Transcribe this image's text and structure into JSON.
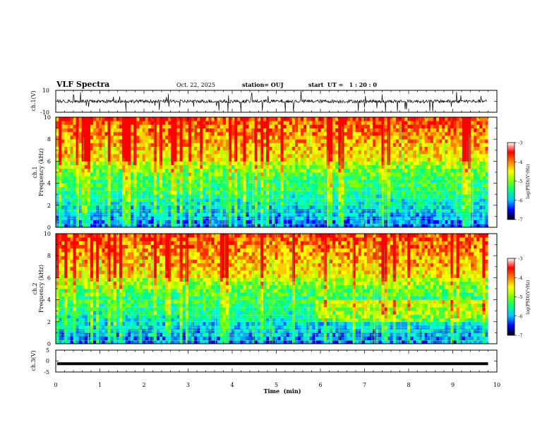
{
  "header": {
    "title": "VLF Spectra",
    "date": "Oct. 22, 2025",
    "station": "station= OUJ",
    "start": "start  UT =   1 : 20 : 0"
  },
  "chart_data": [
    {
      "type": "line",
      "id": "ch1-waveform",
      "ylabel": "ch.1(V)",
      "ylim": [
        -10,
        10
      ],
      "ytick_labels": [
        "10",
        "-10"
      ],
      "baseline": 0,
      "noise_amplitude": 1.5
    },
    {
      "type": "heatmap",
      "id": "ch1-spectrogram",
      "ylabel": [
        "ch.1",
        "Frequency  (kHz)"
      ],
      "ylim": [
        0,
        10
      ],
      "yticks": [
        "0",
        "2",
        "4",
        "6",
        "8",
        "10"
      ],
      "xlim": [
        0,
        10
      ],
      "data_end_min": 9.8,
      "colorbar": {
        "label": "log(PSD)(V²/Hz)",
        "range": [
          -7,
          -3
        ],
        "ticks": [
          "-3",
          "-4",
          "-5",
          "-6",
          "-7"
        ],
        "colors": [
          "#000000",
          "#0000ff",
          "#00bfff",
          "#00ff80",
          "#80ff00",
          "#ffff00",
          "#ff8000",
          "#ff0000",
          "#ffffff"
        ]
      }
    },
    {
      "type": "heatmap",
      "id": "ch2-spectrogram",
      "ylabel": [
        "ch.2",
        "Frequency  (kHz)"
      ],
      "ylim": [
        0,
        10
      ],
      "yticks": [
        "0",
        "2",
        "4",
        "6",
        "8",
        "10"
      ],
      "xlim": [
        0,
        10
      ],
      "data_end_min": 9.8,
      "colorbar": {
        "label": "log(PSD)(V²/Hz)",
        "range": [
          -7,
          -3
        ],
        "ticks": [
          "-3",
          "-4",
          "-5",
          "-6",
          "-7"
        ],
        "colors": [
          "#000000",
          "#0000ff",
          "#00bfff",
          "#00ff80",
          "#80ff00",
          "#ffff00",
          "#ff8000",
          "#ff0000",
          "#ffffff"
        ]
      }
    },
    {
      "type": "line",
      "id": "ch3-waveform",
      "ylabel": "ch.3(V)",
      "ylim": [
        -5,
        5
      ],
      "ytick_labels": [
        "5",
        "0",
        "-5"
      ],
      "baseline": -1.2,
      "xlabel": "Time  (min)",
      "xticks": [
        "0",
        "1",
        "2",
        "3",
        "4",
        "5",
        "6",
        "7",
        "8",
        "9",
        "10"
      ]
    }
  ]
}
